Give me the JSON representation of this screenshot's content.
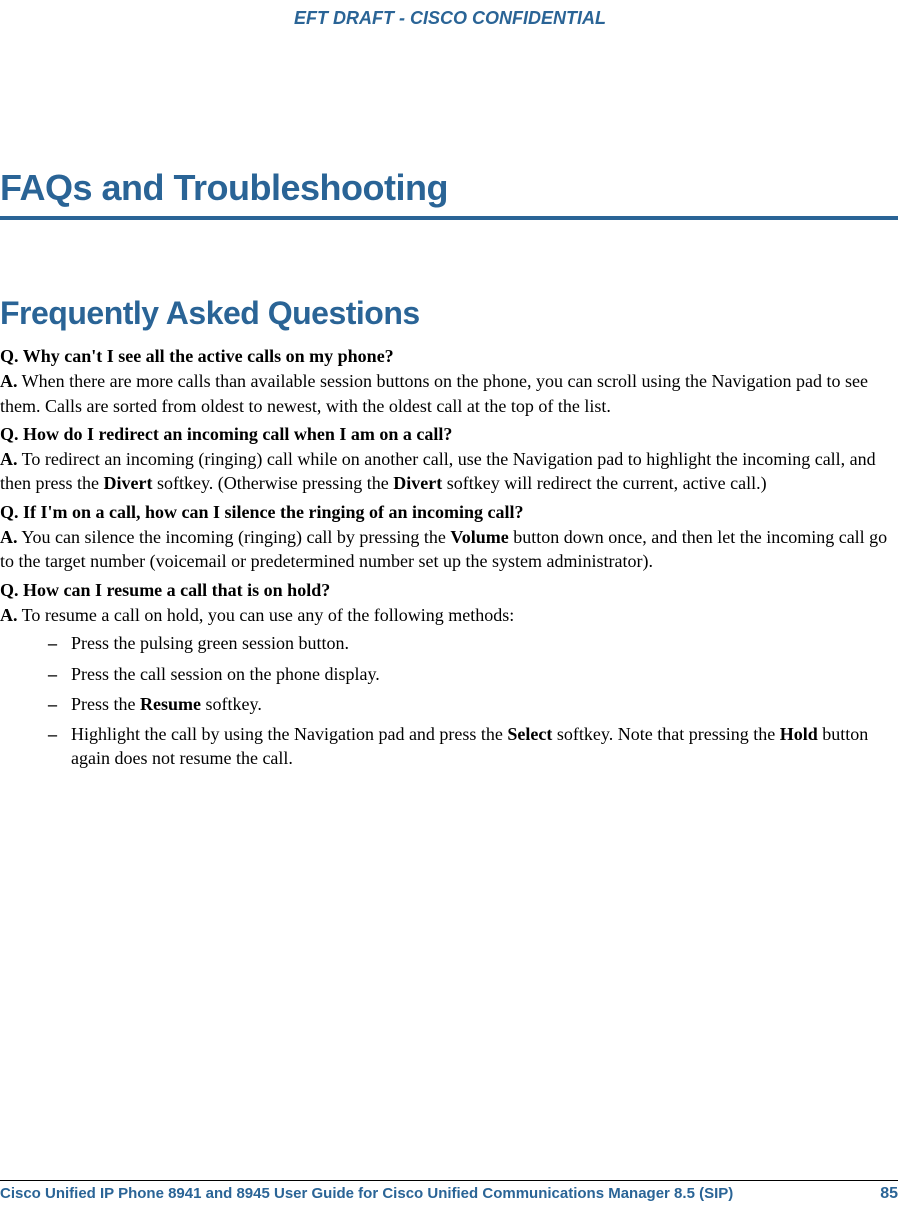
{
  "header": {
    "banner": "EFT DRAFT - CISCO CONFIDENTIAL"
  },
  "main_title": "FAQs and Troubleshooting",
  "section_title": "Frequently Asked Questions",
  "colors": {
    "brand": "#2a6496",
    "text": "#000000",
    "background": "#ffffff"
  },
  "qa": {
    "q1": {
      "q_prefix": "Q.",
      "q_text": " Why can't I see all the active calls on my phone?",
      "a_prefix": "A.",
      "a_text": " When there are more calls than available session buttons on the phone, you can scroll using the Navigation pad to see them. Calls are sorted from oldest to newest, with the oldest call at the top of the list."
    },
    "q2": {
      "q_prefix": "Q.",
      "q_text": " How do I redirect an incoming call when I am on a call?",
      "a_prefix": "A.",
      "a_pre": " To redirect an incoming (ringing) call while on another call, use the Navigation pad to highlight the incoming call, and then press the ",
      "a_bold1": "Divert",
      "a_mid": " softkey. (Otherwise pressing the ",
      "a_bold2": "Divert",
      "a_post": " softkey will redirect the current, active call.)"
    },
    "q3": {
      "q_prefix": "Q.",
      "q_text": " If I'm on a call, how can I silence the ringing of an incoming call?",
      "a_prefix": "A.",
      "a_pre": " You can silence the incoming (ringing) call by pressing the ",
      "a_bold1": "Volume",
      "a_post": " button down once, and then let the incoming call go to the target number (voicemail or predetermined number set up the system administrator)."
    },
    "q4": {
      "q_prefix": "Q.",
      "q_text": " How can I resume a call that is on hold?",
      "a_prefix": "A.",
      "a_text": " To resume a call on hold, you can use any of the following methods:",
      "bullets": {
        "b1": "Press the pulsing green session button.",
        "b2": "Press the call session on the phone display.",
        "b3_pre": "Press the ",
        "b3_bold": "Resume",
        "b3_post": " softkey.",
        "b4_pre": "Highlight the call by using the Navigation pad and press the ",
        "b4_bold1": "Select",
        "b4_mid": " softkey. Note that pressing the ",
        "b4_bold2": "Hold",
        "b4_post": " button again does not resume the call."
      }
    }
  },
  "footer": {
    "doc_title": "Cisco Unified IP Phone 8941 and 8945 User Guide for Cisco Unified Communications Manager 8.5 (SIP)",
    "page": "85"
  },
  "dash": "–"
}
